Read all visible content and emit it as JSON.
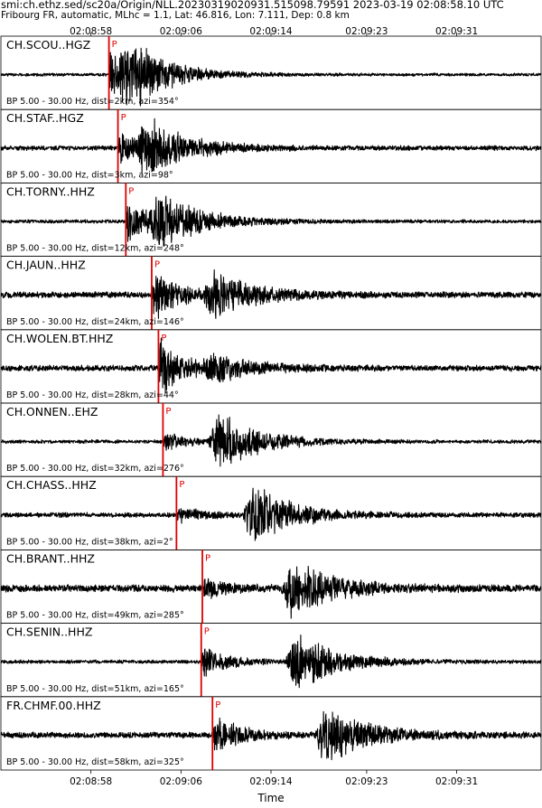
{
  "header": {
    "title": "smi:ch.ethz.sed/sc20a/Origin/NLL.20230319020931.515098.79591 2023-03-19 02:08:58.10 UTC",
    "subtitle": "Fribourg FR, automatic, MLhc = 1.1, Lat: 46.816, Lon: 7.111, Dep: 0.8 km"
  },
  "chart_data": {
    "type": "line",
    "xlabel": "Time",
    "x_ticks": [
      "02:08:58",
      "02:09:06",
      "02:09:14",
      "02:09:23",
      "02:09:31"
    ],
    "x_range_seconds": [
      -8,
      40
    ],
    "x_tick_seconds": [
      0,
      8,
      16,
      24.5,
      32.5
    ],
    "pick_label": "P",
    "pick_color": "#e00000",
    "trace_color": "#000000",
    "traces": [
      {
        "station": "CH.SCOU..HGZ",
        "filter": "BP 5.00 - 30.00 Hz, dist=2km, azi=354°",
        "p_time": 1.6,
        "s_time": 2.9,
        "amp_p": 0.9,
        "amp_s": 1.0,
        "noise": 0.05
      },
      {
        "station": "CH.STAF..HGZ",
        "filter": "BP 5.00 - 30.00 Hz, dist=3km, azi=98°",
        "p_time": 2.4,
        "s_time": 4.5,
        "amp_p": 0.55,
        "amp_s": 1.0,
        "noise": 0.08
      },
      {
        "station": "CH.TORNY..HHZ",
        "filter": "BP 5.00 - 30.00 Hz, dist=12km, azi=248°",
        "p_time": 3.1,
        "s_time": 5.7,
        "amp_p": 0.8,
        "amp_s": 1.0,
        "noise": 0.06
      },
      {
        "station": "CH.JAUN..HHZ",
        "filter": "BP 5.00 - 30.00 Hz, dist=24km, azi=146°",
        "p_time": 5.4,
        "s_time": 10.6,
        "amp_p": 0.9,
        "amp_s": 0.75,
        "noise": 0.1
      },
      {
        "station": "CH.WOLEN.BT.HHZ",
        "filter": "BP 5.00 - 30.00 Hz, dist=28km, azi=44°",
        "p_time": 6.0,
        "s_time": 10.5,
        "amp_p": 1.0,
        "amp_s": 0.45,
        "noise": 0.1
      },
      {
        "station": "CH.ONNEN..EHZ",
        "filter": "BP 5.00 - 30.00 Hz, dist=32km, azi=276°",
        "p_time": 6.4,
        "s_time": 11.0,
        "amp_p": 0.3,
        "amp_s": 1.0,
        "noise": 0.06
      },
      {
        "station": "CH.CHASS..HHZ",
        "filter": "BP 5.00 - 30.00 Hz, dist=38km, azi=2°",
        "p_time": 7.6,
        "s_time": 14.0,
        "amp_p": 0.25,
        "amp_s": 1.0,
        "noise": 0.08
      },
      {
        "station": "CH.BRANT..HHZ",
        "filter": "BP 5.00 - 30.00 Hz, dist=49km, azi=285°",
        "p_time": 9.9,
        "s_time": 17.5,
        "amp_p": 0.35,
        "amp_s": 1.0,
        "noise": 0.12
      },
      {
        "station": "CH.SENIN..HHZ",
        "filter": "BP 5.00 - 30.00 Hz, dist=51km, azi=165°",
        "p_time": 9.8,
        "s_time": 17.9,
        "amp_p": 0.55,
        "amp_s": 1.0,
        "noise": 0.06
      },
      {
        "station": "FR.CHMF.00.HHZ",
        "filter": "BP 5.00 - 30.00 Hz, dist=58km, azi=325°",
        "p_time": 10.8,
        "s_time": 20.5,
        "amp_p": 0.7,
        "amp_s": 1.0,
        "noise": 0.1
      }
    ]
  }
}
